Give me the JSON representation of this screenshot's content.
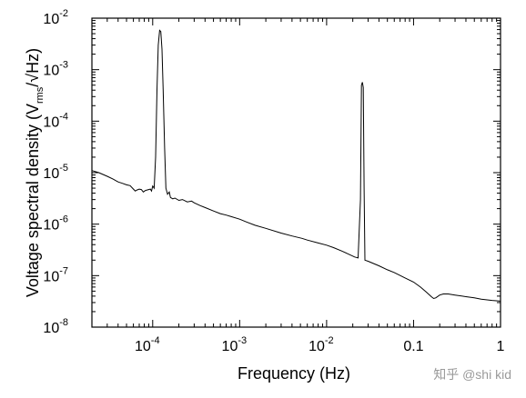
{
  "chart_data": {
    "type": "line",
    "title": "",
    "xlabel": "Frequency (Hz)",
    "ylabel": {
      "prefix": "Voltage spectral density (V",
      "subscript": "rms",
      "suffix": "/√Hz)"
    },
    "x_scale": "log",
    "y_scale": "log",
    "xlim": [
      2e-05,
      1
    ],
    "ylim": [
      1e-08,
      0.01
    ],
    "grid": false,
    "legend": "none",
    "line_color": "#000000",
    "x_ticks": [
      {
        "value": 0.0001,
        "base": "10",
        "exp": "-4"
      },
      {
        "value": 0.001,
        "base": "10",
        "exp": "-3"
      },
      {
        "value": 0.01,
        "base": "10",
        "exp": "-2"
      },
      {
        "value": 0.1,
        "base": "0.1",
        "exp": ""
      },
      {
        "value": 1,
        "base": "1",
        "exp": ""
      }
    ],
    "y_ticks": [
      {
        "value": 1e-08,
        "base": "10",
        "exp": "-8"
      },
      {
        "value": 1e-07,
        "base": "10",
        "exp": "-7"
      },
      {
        "value": 1e-06,
        "base": "10",
        "exp": "-6"
      },
      {
        "value": 1e-05,
        "base": "10",
        "exp": "-5"
      },
      {
        "value": 0.0001,
        "base": "10",
        "exp": "-4"
      },
      {
        "value": 0.001,
        "base": "10",
        "exp": "-3"
      },
      {
        "value": 0.01,
        "base": "10",
        "exp": "-2"
      }
    ],
    "series": [
      {
        "points": [
          [
            2e-05,
            1.1e-05
          ],
          [
            2.4e-05,
            1e-05
          ],
          [
            3e-05,
            8.5e-06
          ],
          [
            3.5e-05,
            7.5e-06
          ],
          [
            4e-05,
            6.6e-06
          ],
          [
            4.5e-05,
            6.2e-06
          ],
          [
            5e-05,
            5.8e-06
          ],
          [
            5.5e-05,
            5.6e-06
          ],
          [
            6e-05,
            4.8e-06
          ],
          [
            6.3e-05,
            4.4e-06
          ],
          [
            6.6e-05,
            4.6e-06
          ],
          [
            7e-05,
            4.8e-06
          ],
          [
            7.4e-05,
            4.7e-06
          ],
          [
            7.8e-05,
            4.2e-06
          ],
          [
            8.2e-05,
            4.5e-06
          ],
          [
            8.6e-05,
            4.6e-06
          ],
          [
            9e-05,
            4.7e-06
          ],
          [
            9.4e-05,
            4.8e-06
          ],
          [
            9.7e-05,
            4.4e-06
          ],
          [
            0.0001,
            5.5e-06
          ],
          [
            0.000104,
            5e-06
          ],
          [
            0.000108,
            2e-05
          ],
          [
            0.000112,
            0.0004
          ],
          [
            0.000116,
            0.003
          ],
          [
            0.00012,
            0.0058
          ],
          [
            0.000124,
            0.0055
          ],
          [
            0.000128,
            0.0025
          ],
          [
            0.000132,
            0.0004
          ],
          [
            0.000137,
            3e-05
          ],
          [
            0.000142,
            5e-06
          ],
          [
            0.000148,
            3.8e-06
          ],
          [
            0.000155,
            4.2e-06
          ],
          [
            0.00016,
            3.3e-06
          ],
          [
            0.00017,
            3.1e-06
          ],
          [
            0.00018,
            3.2e-06
          ],
          [
            0.0002,
            2.9e-06
          ],
          [
            0.00022,
            3e-06
          ],
          [
            0.00025,
            2.7e-06
          ],
          [
            0.00028,
            2.8e-06
          ],
          [
            0.0003,
            2.6e-06
          ],
          [
            0.00035,
            2.3e-06
          ],
          [
            0.0004,
            2.1e-06
          ],
          [
            0.0005,
            1.8e-06
          ],
          [
            0.0006,
            1.6e-06
          ],
          [
            0.0007,
            1.5e-06
          ],
          [
            0.0008,
            1.4e-06
          ],
          [
            0.001,
            1.25e-06
          ],
          [
            0.0012,
            1.1e-06
          ],
          [
            0.0015,
            9.5e-07
          ],
          [
            0.002,
            8.3e-07
          ],
          [
            0.003,
            6.7e-07
          ],
          [
            0.004,
            5.9e-07
          ],
          [
            0.0052,
            5.3e-07
          ],
          [
            0.006,
            4.9e-07
          ],
          [
            0.008,
            4.3e-07
          ],
          [
            0.01,
            3.9e-07
          ],
          [
            0.012,
            3.5e-07
          ],
          [
            0.015,
            3e-07
          ],
          [
            0.018,
            2.6e-07
          ],
          [
            0.021,
            2.3e-07
          ],
          [
            0.023,
            2.2e-07
          ],
          [
            0.0245,
            3e-06
          ],
          [
            0.0252,
            0.0005
          ],
          [
            0.0258,
            0.00057
          ],
          [
            0.0264,
            0.00045
          ],
          [
            0.027,
            5e-06
          ],
          [
            0.0276,
            2e-07
          ],
          [
            0.03,
            1.9e-07
          ],
          [
            0.04,
            1.55e-07
          ],
          [
            0.05,
            1.3e-07
          ],
          [
            0.06,
            1.15e-07
          ],
          [
            0.08,
            9e-08
          ],
          [
            0.1,
            7.5e-08
          ],
          [
            0.12,
            6e-08
          ],
          [
            0.14,
            4.8e-08
          ],
          [
            0.16,
            3.9e-08
          ],
          [
            0.17,
            3.6e-08
          ],
          [
            0.18,
            3.7e-08
          ],
          [
            0.2,
            4.2e-08
          ],
          [
            0.22,
            4.4e-08
          ],
          [
            0.25,
            4.4e-08
          ],
          [
            0.3,
            4.2e-08
          ],
          [
            0.4,
            3.9e-08
          ],
          [
            0.5,
            3.7e-08
          ],
          [
            0.6,
            3.5e-08
          ],
          [
            0.8,
            3.3e-08
          ],
          [
            1.0,
            3.2e-08
          ]
        ]
      }
    ]
  },
  "watermark": "知乎 @shi kid"
}
